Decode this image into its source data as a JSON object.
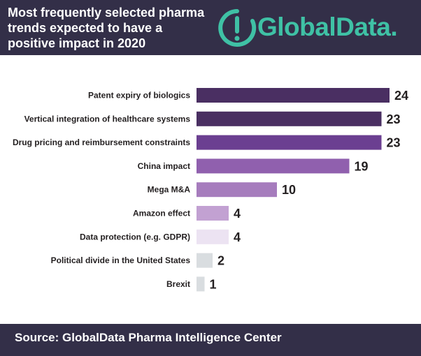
{
  "header": {
    "title": "Most frequently selected pharma trends expected to have a positive impact in 2020",
    "brand": "GlobalData.",
    "logo_icon": "globaldata-logo-icon"
  },
  "footer": {
    "source": "Source:  GlobalData Pharma Intelligence Center"
  },
  "colors": {
    "header_bg": "#332f48",
    "brand": "#3fc1a5"
  },
  "chart_data": {
    "type": "bar",
    "orientation": "horizontal",
    "categories": [
      "Patent expiry of biologics",
      "Vertical integration of healthcare systems",
      "Drug pricing and reimbursement constraints",
      "China impact",
      "Mega M&A",
      "Amazon effect",
      "Data protection (e.g. GDPR)",
      "Political divide in the United States",
      "Brexit"
    ],
    "values": [
      24,
      23,
      23,
      19,
      10,
      4,
      4,
      2,
      1
    ],
    "bar_colors": [
      "#4a2f62",
      "#4a2f62",
      "#6b3f91",
      "#9060ae",
      "#a67cbd",
      "#c2a1d2",
      "#ece3f2",
      "#d9dde0",
      "#d9dde0"
    ],
    "xlim": [
      0,
      24
    ],
    "grid": false,
    "legend": "none"
  }
}
